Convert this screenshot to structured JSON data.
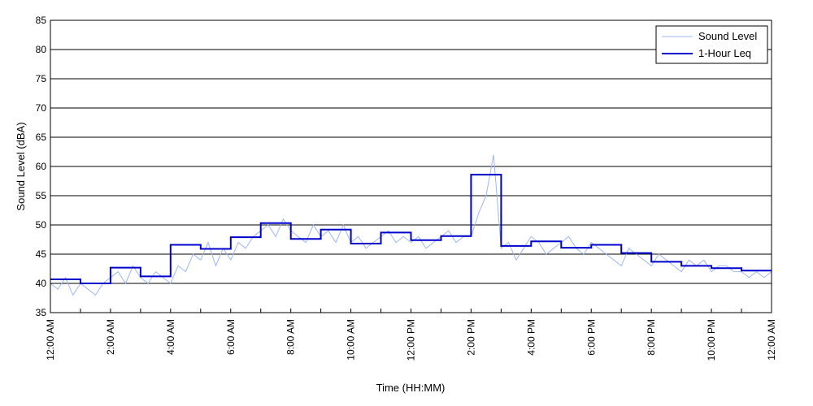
{
  "chart_data": {
    "type": "line",
    "title": "",
    "xlabel": "Time (HH:MM)",
    "ylabel": "Sound Level (dBA)",
    "ylim": [
      35,
      85
    ],
    "yticks": [
      35,
      40,
      45,
      50,
      55,
      60,
      65,
      70,
      75,
      80,
      85
    ],
    "xlim_hours": [
      0,
      24
    ],
    "xticks": [
      {
        "hour": 0,
        "label": "12:00 AM"
      },
      {
        "hour": 2,
        "label": "2:00 AM"
      },
      {
        "hour": 4,
        "label": "4:00 AM"
      },
      {
        "hour": 6,
        "label": "6:00 AM"
      },
      {
        "hour": 8,
        "label": "8:00 AM"
      },
      {
        "hour": 10,
        "label": "10:00 AM"
      },
      {
        "hour": 12,
        "label": "12:00 PM"
      },
      {
        "hour": 14,
        "label": "2:00 PM"
      },
      {
        "hour": 16,
        "label": "4:00 PM"
      },
      {
        "hour": 18,
        "label": "6:00 PM"
      },
      {
        "hour": 20,
        "label": "8:00 PM"
      },
      {
        "hour": 22,
        "label": "10:00 PM"
      },
      {
        "hour": 24,
        "label": "12:00 AM"
      }
    ],
    "grid": "horizontal",
    "legend_position": "top-right",
    "series": [
      {
        "name": "Sound Level",
        "color": "#9fb8f0",
        "x_hours": [
          0,
          0.25,
          0.5,
          0.75,
          1,
          1.25,
          1.5,
          1.75,
          2,
          2.25,
          2.5,
          2.75,
          3,
          3.25,
          3.5,
          3.75,
          4,
          4.25,
          4.5,
          4.75,
          5,
          5.25,
          5.5,
          5.75,
          6,
          6.25,
          6.5,
          6.75,
          7,
          7.25,
          7.5,
          7.75,
          8,
          8.25,
          8.5,
          8.75,
          9,
          9.25,
          9.5,
          9.75,
          10,
          10.25,
          10.5,
          10.75,
          11,
          11.25,
          11.5,
          11.75,
          12,
          12.25,
          12.5,
          12.75,
          13,
          13.25,
          13.5,
          13.75,
          14,
          14.25,
          14.5,
          14.75,
          15,
          15.25,
          15.5,
          15.75,
          16,
          16.25,
          16.5,
          16.75,
          17,
          17.25,
          17.5,
          17.75,
          18,
          18.25,
          18.5,
          18.75,
          19,
          19.25,
          19.5,
          19.75,
          20,
          20.25,
          20.5,
          20.75,
          21,
          21.25,
          21.5,
          21.75,
          22,
          22.25,
          22.5,
          22.75,
          23,
          23.25,
          23.5,
          23.75,
          24
        ],
        "values": [
          40,
          39,
          41,
          38,
          40,
          39,
          38,
          40,
          41,
          42,
          40,
          43,
          41,
          40,
          42,
          41,
          40,
          43,
          42,
          45,
          44,
          47,
          43,
          46,
          44,
          47,
          46,
          48,
          49,
          50,
          48,
          51,
          49,
          48,
          47,
          50,
          48,
          49,
          47,
          50,
          47,
          48,
          46,
          47,
          48,
          49,
          47,
          48,
          47,
          48,
          46,
          47,
          48,
          49,
          47,
          48,
          48,
          52,
          55,
          62,
          46,
          47,
          44,
          46,
          48,
          47,
          45,
          46,
          47,
          48,
          46,
          45,
          47,
          46,
          45,
          44,
          43,
          46,
          45,
          44,
          43,
          45,
          44,
          43,
          42,
          44,
          43,
          44,
          42,
          43,
          43,
          42,
          42,
          41,
          42,
          41,
          42
        ]
      },
      {
        "name": "1-Hour Leq",
        "color": "#0000cc",
        "hour_starts": [
          0,
          1,
          2,
          3,
          4,
          5,
          6,
          7,
          8,
          9,
          10,
          11,
          12,
          13,
          14,
          15,
          16,
          17,
          18,
          19,
          20,
          21,
          22,
          23
        ],
        "values": [
          40.7,
          40.0,
          42.7,
          41.2,
          46.6,
          45.9,
          47.9,
          50.3,
          47.6,
          49.2,
          46.8,
          48.7,
          47.4,
          48.1,
          58.6,
          46.4,
          47.2,
          46.1,
          46.6,
          45.2,
          43.7,
          43.0,
          42.6,
          42.2
        ]
      }
    ]
  }
}
